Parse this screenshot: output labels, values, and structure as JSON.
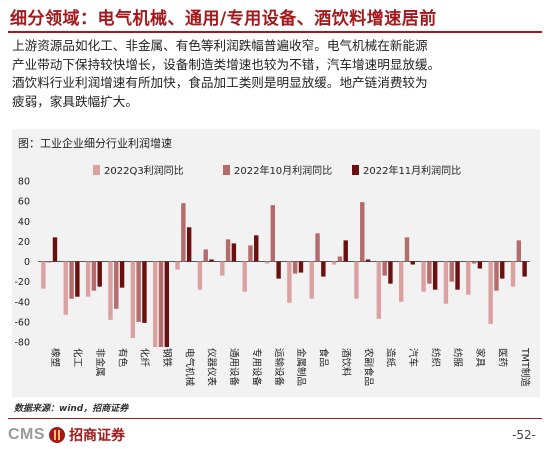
{
  "header": {
    "title": "细分领域：电气机械、通用/专用设备、酒饮料增速居前"
  },
  "summary": {
    "lines": [
      "上游资源品如化工、非金属、有色等利润跌幅普遍收窄。电气机械在新能源",
      "产业带动下保持较快增长，设备制造类增速也较为不错，汽车增速明显放缓。",
      "酒饮料行业利润增速有所加快，食品加工类则是明显放缓。地产链消费较为",
      "疲弱，家具跌幅扩大。"
    ]
  },
  "chart": {
    "heading": "图：工业企业细分行业利润增速",
    "source": "数据来源：wind，招商证券"
  },
  "chart_data": {
    "type": "bar",
    "title": "",
    "ylim": [
      -80,
      80
    ],
    "yticks": [
      -80,
      -60,
      -40,
      -20,
      0,
      20,
      40,
      60,
      80
    ],
    "legend_position": "top",
    "categories": [
      "橡塑",
      "化工",
      "非金属",
      "有色",
      "化纤",
      "钢铁",
      "电气机械",
      "仪器仪表",
      "通用设备",
      "专用设备",
      "运输设备",
      "金属制品",
      "食品",
      "酒饮料",
      "农副食品",
      "造纸",
      "汽车",
      "纺织",
      "纺服",
      "家具",
      "医药",
      "TMT制造"
    ],
    "series": [
      {
        "name": "2022Q3利润同比",
        "color": "#dba1a1",
        "values": [
          -27,
          -53,
          -35,
          -58,
          -76,
          -85,
          -8,
          -28,
          -14,
          -30,
          -2,
          -41,
          -37,
          -3,
          -37,
          -57,
          -40,
          -30,
          -42,
          -33,
          -62,
          -25
        ]
      },
      {
        "name": "2022年10月利润同比",
        "color": "#b36b6b",
        "values": [
          -1,
          -37,
          -29,
          -47,
          -60,
          -85,
          58,
          12,
          22,
          16,
          56,
          -12,
          28,
          5,
          59,
          -14,
          24,
          -22,
          -20,
          -2,
          -29,
          21
        ]
      },
      {
        "name": "2022年11月利润同比",
        "color": "#6b0f0f",
        "values": [
          24,
          -35,
          -25,
          -26,
          -61,
          -85,
          34,
          2,
          18,
          26,
          -17,
          -11,
          -15,
          21,
          2,
          -22,
          -3,
          -28,
          -28,
          -7,
          -17,
          -15
        ]
      }
    ]
  },
  "footer": {
    "logo_cms": "CMS",
    "logo_cn": "招商证券",
    "page": "-52-"
  }
}
